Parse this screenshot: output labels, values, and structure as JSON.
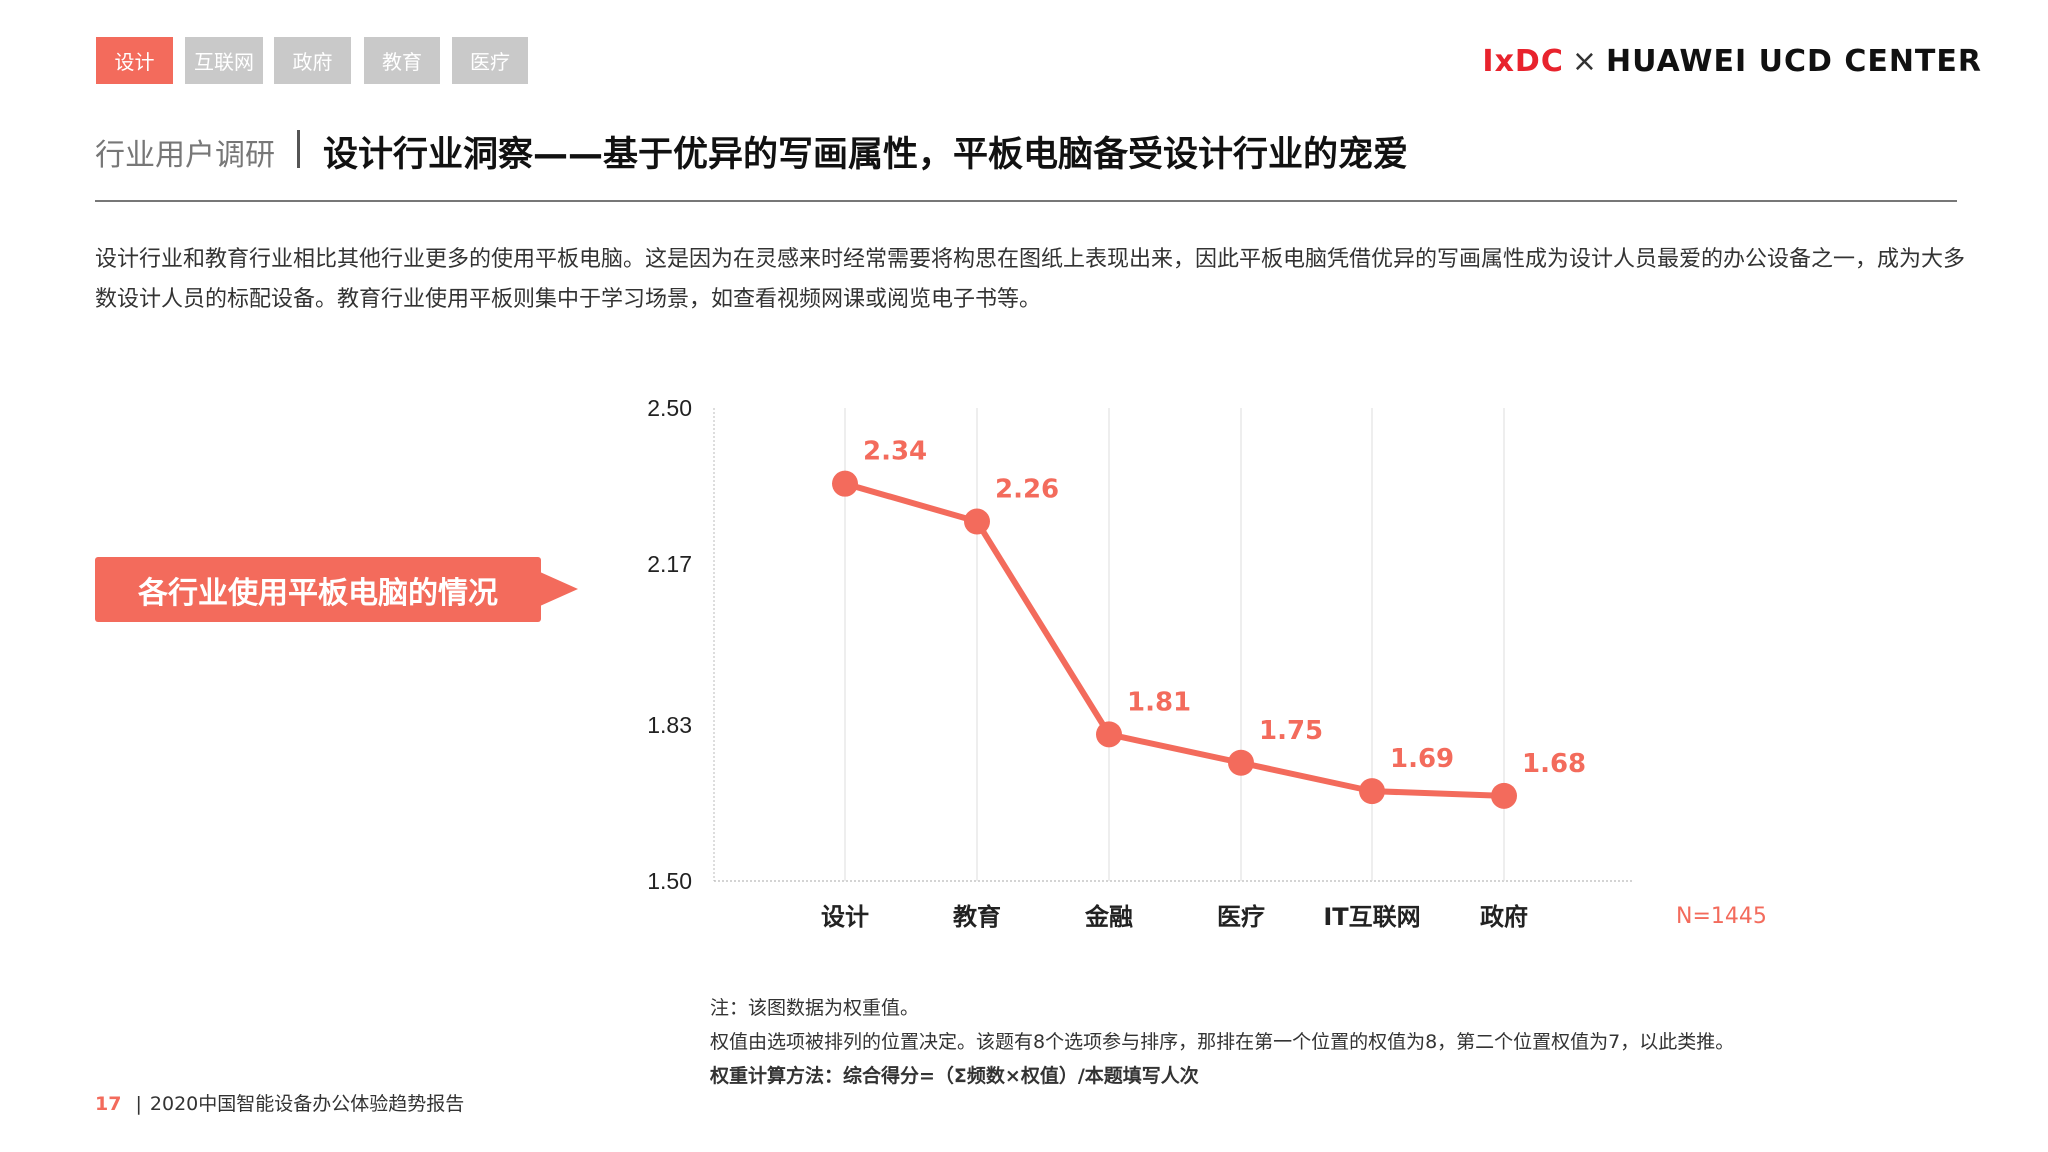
{
  "tabs": [
    {
      "label": "设计",
      "active": true
    },
    {
      "label": "互联网"
    },
    {
      "label": "政府"
    },
    {
      "label": "教育"
    },
    {
      "label": "医疗"
    }
  ],
  "logo": {
    "brand": "IxDC",
    "separator": "×",
    "partner": "HUAWEI UCD CENTER"
  },
  "header": {
    "section": "行业用户调研",
    "title": "设计行业洞察——基于优异的写画属性，平板电脑备受设计行业的宠爱"
  },
  "paragraph": "设计行业和教育行业相比其他行业更多的使用平板电脑。这是因为在灵感来时经常需要将构思在图纸上表现出来，因此平板电脑凭借优异的写画属性成为设计人员最爱的办公设备之一，成为大多数设计人员的标配设备。教育行业使用平板则集中于学习场景，如查看视频网课或阅览电子书等。",
  "badge": "各行业使用平板电脑的情况",
  "colors": {
    "accent": "#f36b5c",
    "tab_inactive": "#c9c9c9"
  },
  "chart_data": {
    "type": "line",
    "categories": [
      "设计",
      "教育",
      "金融",
      "医疗",
      "IT互联网",
      "政府"
    ],
    "values": [
      2.34,
      2.26,
      1.81,
      1.75,
      1.69,
      1.68
    ],
    "data_labels": [
      "2.34",
      "2.26",
      "1.81",
      "1.75",
      "1.69",
      "1.68"
    ],
    "yticks": [
      "1.50",
      "1.83",
      "2.17",
      "2.50"
    ],
    "ylim": [
      1.5,
      2.5
    ],
    "grid": "vertical",
    "annotation": "N=1445"
  },
  "notes": [
    "注：该图数据为权重值。",
    "权值由选项被排列的位置决定。该题有8个选项参与排序，那排在第一个位置的权值为8，第二个位置权值为7，以此类推。",
    "权重计算方法：综合得分=（Σ频数×权值）/本题填写人次"
  ],
  "footer": {
    "page": "17",
    "separator": "|",
    "report": "2020中国智能设备办公体验趋势报告"
  }
}
